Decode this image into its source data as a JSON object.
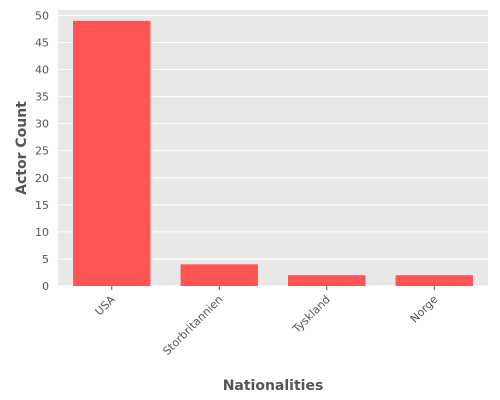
{
  "colors": {
    "bar": "#ff5555",
    "panel": "#e8e8e8",
    "grid": "#ffffff",
    "text": "#555555"
  },
  "chart_data": {
    "type": "bar",
    "categories": [
      "USA",
      "Storbritannien",
      "Tyskland",
      "Norge"
    ],
    "values": [
      49,
      4,
      2,
      2
    ],
    "xlabel": "Nationalities",
    "ylabel": "Actor Count",
    "ylim": [
      0,
      51
    ],
    "yticks": [
      0,
      5,
      10,
      15,
      20,
      25,
      30,
      35,
      40,
      45,
      50
    ],
    "grid": true,
    "legend": "none"
  }
}
